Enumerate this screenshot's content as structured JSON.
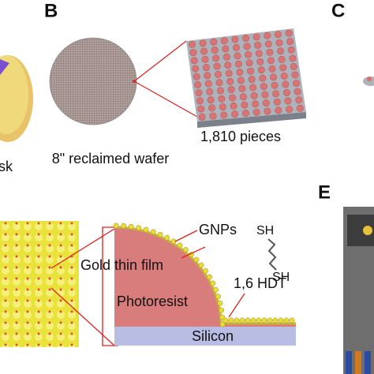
{
  "panel_a": {
    "caption_fragment": "sk"
  },
  "panel_b": {
    "label": "B",
    "wafer_caption": "8\" reclaimed wafer",
    "pieces_caption": "1,810 pieces"
  },
  "panel_c": {
    "label": "C"
  },
  "panel_d": {
    "gnps": "GNPs",
    "thiol_top": "SH",
    "thiol_bottom": "SH",
    "gold_film": "Gold thin film",
    "hdt": "1,6 HDT",
    "photoresist": "Photoresist",
    "silicon": "Silicon"
  },
  "panel_e": {
    "label": "E"
  }
}
